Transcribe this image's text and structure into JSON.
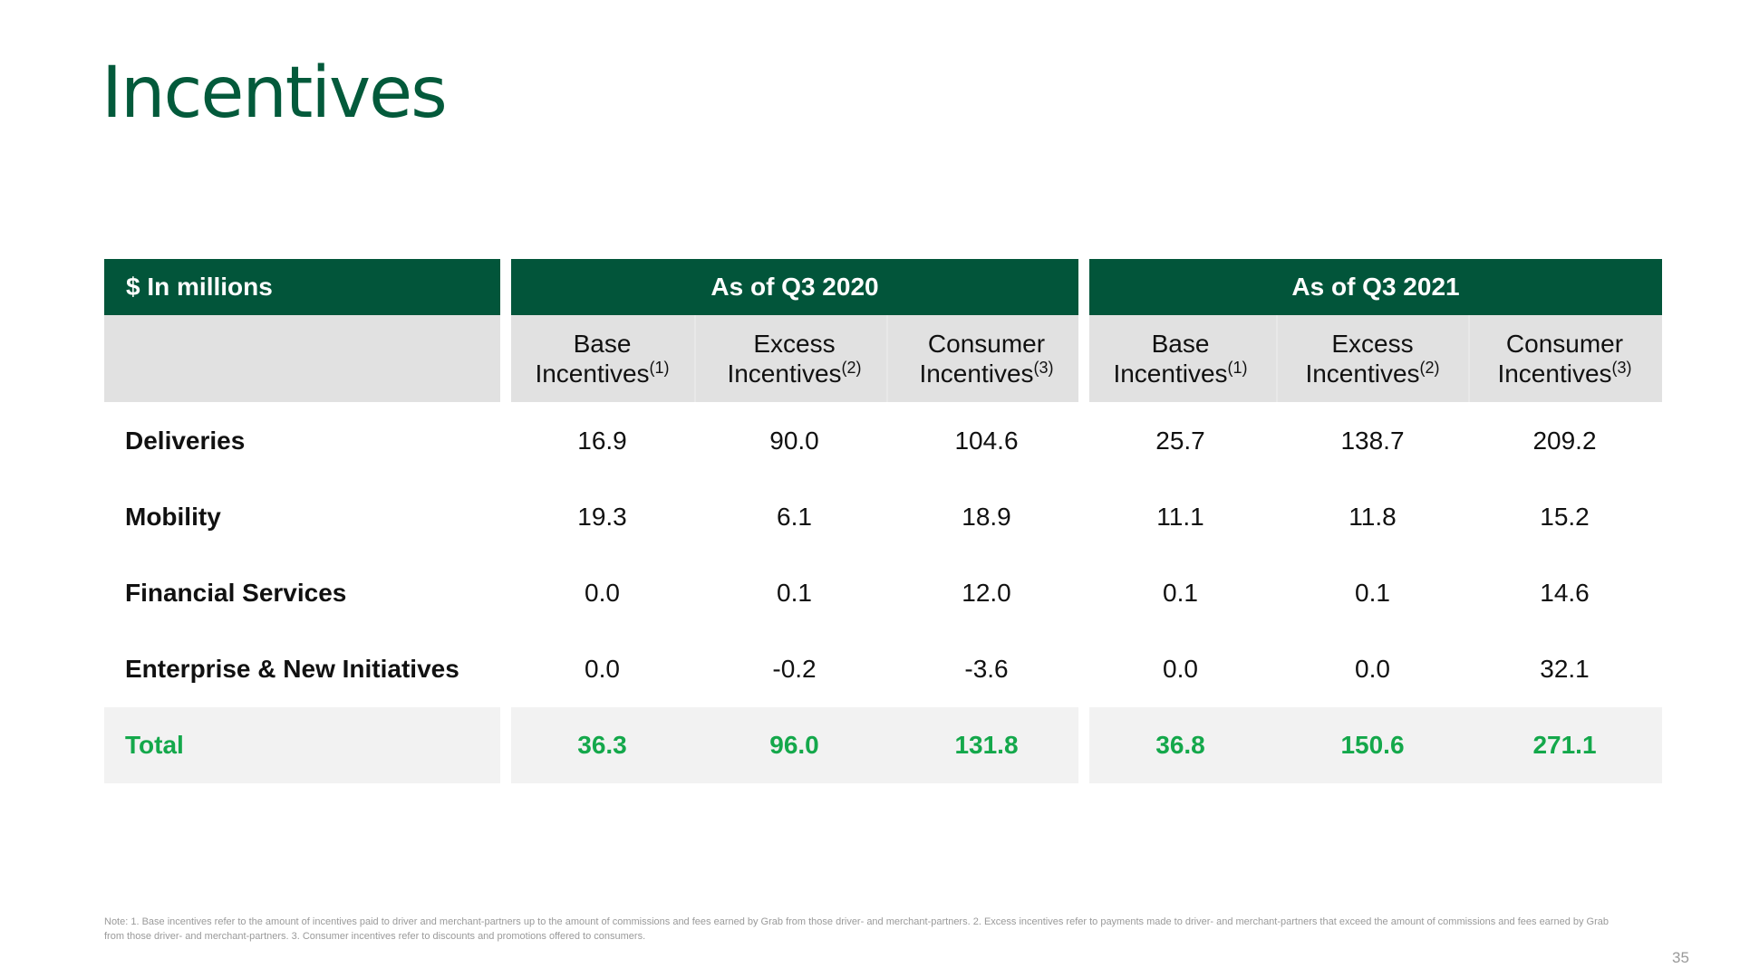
{
  "slide": {
    "title": "Incentives",
    "page_number": "35",
    "note": "Note: 1. Base incentives refer to the amount of incentives paid to driver and merchant-partners up to the amount of commissions and fees earned by Grab from those driver- and merchant-partners. 2. Excess incentives refer to payments made to driver- and merchant-partners that exceed the amount of commissions and fees earned by Grab from those driver- and merchant-partners. 3. Consumer incentives refer to discounts and promotions offered to consumers."
  },
  "table": {
    "unit_header": "$ In millions",
    "groups": [
      "As of Q3 2020",
      "As of Q3 2021"
    ],
    "sub_headers": [
      {
        "line1": "Base",
        "line2": "Incentives",
        "note": "(1)"
      },
      {
        "line1": "Excess",
        "line2": "Incentives",
        "note": "(2)"
      },
      {
        "line1": "Consumer",
        "line2": "Incentives",
        "note": "(3)"
      }
    ],
    "rows": [
      {
        "label": "Deliveries",
        "values": [
          "16.9",
          "90.0",
          "104.6",
          "25.7",
          "138.7",
          "209.2"
        ]
      },
      {
        "label": "Mobility",
        "values": [
          "19.3",
          "6.1",
          "18.9",
          "11.1",
          "11.8",
          "15.2"
        ]
      },
      {
        "label": "Financial Services",
        "values": [
          "0.0",
          "0.1",
          "12.0",
          "0.1",
          "0.1",
          "14.6"
        ]
      },
      {
        "label": "Enterprise & New Initiatives",
        "values": [
          "0.0",
          "-0.2",
          "-3.6",
          "0.0",
          "0.0",
          "32.1"
        ]
      },
      {
        "label": "Total",
        "values": [
          "36.3",
          "96.0",
          "131.8",
          "36.8",
          "150.6",
          "271.1"
        ]
      }
    ]
  },
  "colors": {
    "title_green": "#035a3b",
    "header_green": "#02553a",
    "total_green": "#14a84b",
    "subheader_gray": "#e1e1e1",
    "total_row_gray": "#f2f2f2"
  }
}
